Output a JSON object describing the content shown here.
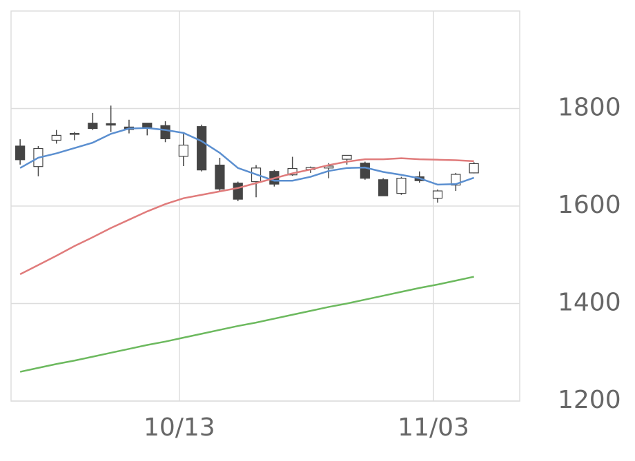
{
  "chart_data": {
    "type": "candlestick",
    "categories": [
      null,
      null,
      null,
      null,
      null,
      null,
      null,
      null,
      null,
      "10/13",
      null,
      null,
      null,
      null,
      null,
      null,
      null,
      null,
      null,
      null,
      null,
      null,
      null,
      "11/03",
      null,
      null
    ],
    "open": [
      1723,
      1681,
      1735,
      1748,
      1770,
      1769,
      1762,
      1770,
      1765,
      1702,
      1763,
      1684,
      1647,
      1650,
      1671,
      1664,
      1675,
      1678,
      1696,
      1688,
      1654,
      1626,
      1660,
      1616,
      1643,
      1668
    ],
    "high": [
      1737,
      1723,
      1756,
      1752,
      1791,
      1806,
      1777,
      1770,
      1774,
      1748,
      1767,
      1699,
      1650,
      1684,
      1674,
      1701,
      1681,
      1688,
      1704,
      1691,
      1657,
      1660,
      1671,
      1634,
      1668,
      1690
    ],
    "low": [
      1685,
      1661,
      1728,
      1735,
      1756,
      1752,
      1749,
      1745,
      1731,
      1682,
      1671,
      1631,
      1610,
      1618,
      1640,
      1662,
      1668,
      1657,
      1685,
      1654,
      1621,
      1623,
      1648,
      1607,
      1631,
      1667
    ],
    "close": [
      1695,
      1718,
      1745,
      1749,
      1759,
      1766,
      1757,
      1760,
      1738,
      1725,
      1674,
      1635,
      1614,
      1678,
      1645,
      1677,
      1679,
      1682,
      1704,
      1657,
      1621,
      1657,
      1652,
      1631,
      1665,
      1687
    ],
    "up_color": "#ffffff",
    "down_color": "#444444",
    "wick_color": "#444444",
    "series": [
      {
        "color": "#5b8fd0",
        "values": [
          1678,
          1699,
          1708,
          1719,
          1730,
          1748,
          1759,
          1760,
          1756,
          1750,
          1733,
          1709,
          1678,
          1665,
          1652,
          1652,
          1660,
          1672,
          1678,
          1679,
          1670,
          1664,
          1657,
          1644,
          1645,
          1658
        ]
      },
      {
        "color": "#e07b7b",
        "values": [
          1460,
          1479,
          1498,
          1518,
          1536,
          1555,
          1572,
          1589,
          1604,
          1616,
          1623,
          1630,
          1637,
          1647,
          1657,
          1667,
          1675,
          1684,
          1691,
          1696,
          1696,
          1698,
          1696,
          1695,
          1694,
          1692
        ]
      },
      {
        "color": "#6cb95e",
        "values": [
          1260,
          1268,
          1276,
          1283,
          1291,
          1299,
          1307,
          1315,
          1322,
          1330,
          1338,
          1346,
          1354,
          1361,
          1369,
          1377,
          1385,
          1393,
          1400,
          1408,
          1416,
          1424,
          1432,
          1439,
          1447,
          1455
        ]
      }
    ],
    "ylim": [
      1200,
      2000
    ],
    "yticks": [
      1200,
      1400,
      1600,
      1800
    ],
    "grid": true
  }
}
